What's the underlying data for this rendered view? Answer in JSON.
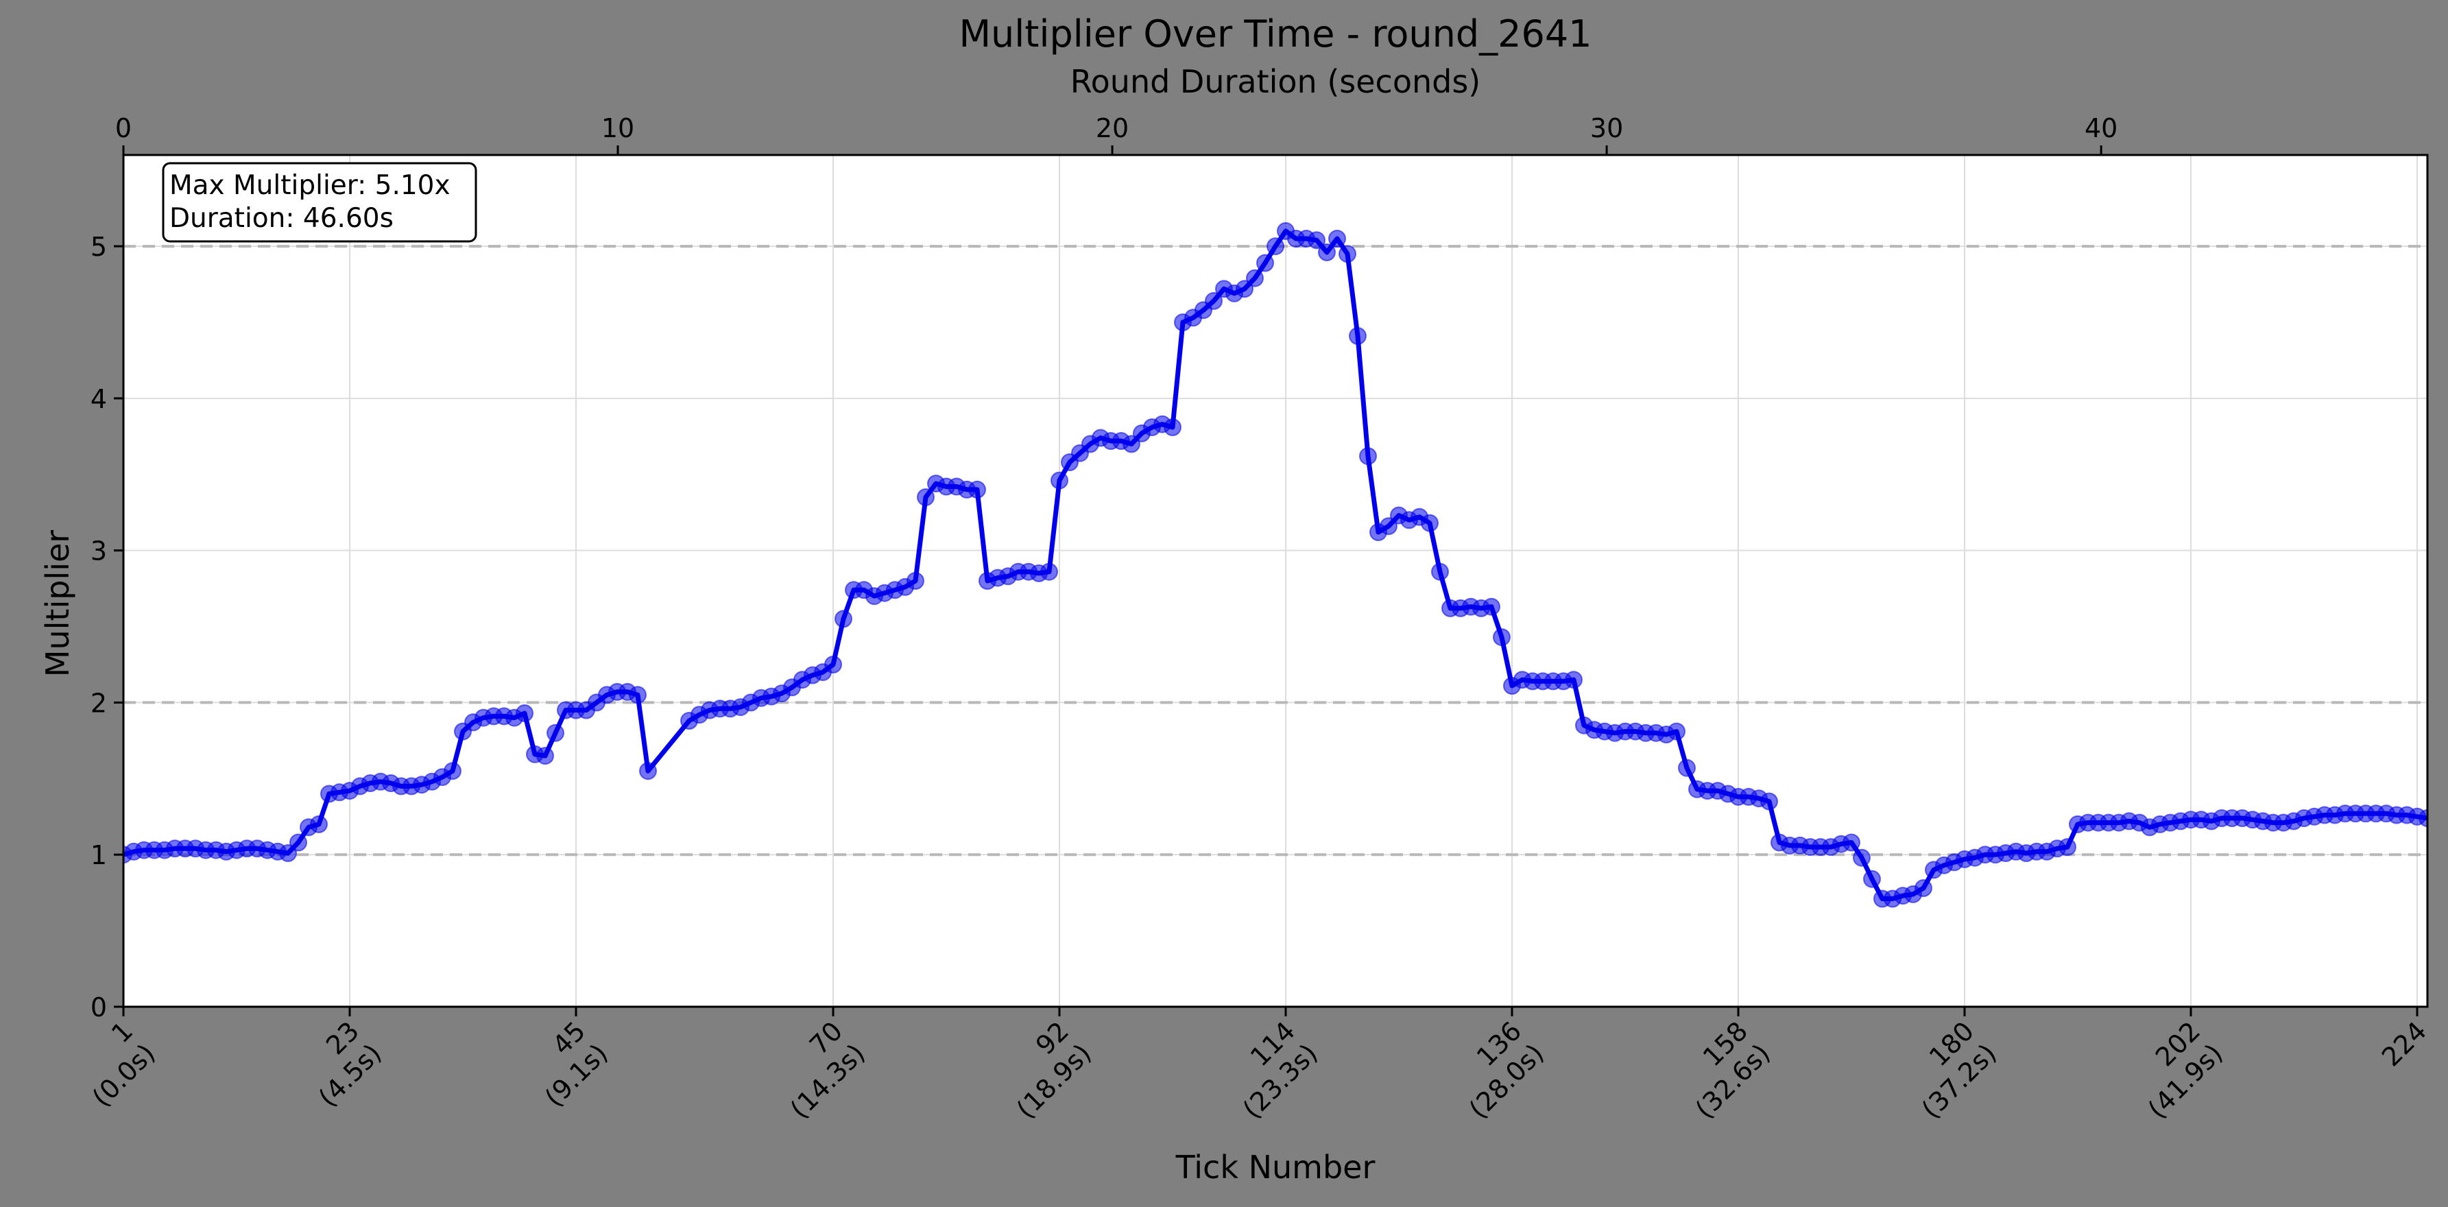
{
  "chart_data": {
    "type": "line",
    "title": "Multiplier Over Time - round_2641",
    "xlabel": "Tick Number",
    "ylabel": "Multiplier",
    "x2label": "Round Duration (seconds)",
    "xlim": [
      1,
      225
    ],
    "ylim": [
      0,
      5.6
    ],
    "x2lim": [
      0,
      46.6
    ],
    "yticks": [
      0,
      1,
      2,
      3,
      4,
      5
    ],
    "x2ticks": [
      0,
      10,
      20,
      30,
      40
    ],
    "xticks": [
      {
        "tick": 1,
        "line1": "1",
        "line2": "(0.0s)"
      },
      {
        "tick": 23,
        "line1": "23",
        "line2": "(4.5s)"
      },
      {
        "tick": 45,
        "line1": "45",
        "line2": "(9.1s)"
      },
      {
        "tick": 70,
        "line1": "70",
        "line2": "(14.3s)"
      },
      {
        "tick": 92,
        "line1": "92",
        "line2": "(18.9s)"
      },
      {
        "tick": 114,
        "line1": "114",
        "line2": "(23.3s)"
      },
      {
        "tick": 136,
        "line1": "136",
        "line2": "(28.0s)"
      },
      {
        "tick": 158,
        "line1": "158",
        "line2": "(32.6s)"
      },
      {
        "tick": 180,
        "line1": "180",
        "line2": "(37.2s)"
      },
      {
        "tick": 202,
        "line1": "202",
        "line2": "(41.9s)"
      },
      {
        "tick": 224,
        "line1": "224",
        "line2": ""
      }
    ],
    "reference_lines": [
      1,
      2,
      5
    ],
    "grid": true,
    "annotation": [
      "Max Multiplier: 5.10x",
      "Duration: 46.60s"
    ],
    "line_color": "#0000ee",
    "series": [
      {
        "points": [
          [
            1,
            1.0
          ],
          [
            2,
            1.02
          ],
          [
            3,
            1.03
          ],
          [
            4,
            1.03
          ],
          [
            5,
            1.03
          ],
          [
            6,
            1.04
          ],
          [
            7,
            1.04
          ],
          [
            8,
            1.04
          ],
          [
            9,
            1.03
          ],
          [
            10,
            1.03
          ],
          [
            11,
            1.02
          ],
          [
            12,
            1.03
          ],
          [
            13,
            1.04
          ],
          [
            14,
            1.04
          ],
          [
            15,
            1.03
          ],
          [
            16,
            1.02
          ],
          [
            17,
            1.01
          ],
          [
            18,
            1.08
          ],
          [
            19,
            1.18
          ],
          [
            20,
            1.2
          ],
          [
            21,
            1.4
          ],
          [
            22,
            1.41
          ],
          [
            23,
            1.42
          ],
          [
            24,
            1.45
          ],
          [
            25,
            1.47
          ],
          [
            26,
            1.48
          ],
          [
            27,
            1.47
          ],
          [
            28,
            1.45
          ],
          [
            29,
            1.45
          ],
          [
            30,
            1.46
          ],
          [
            31,
            1.48
          ],
          [
            32,
            1.51
          ],
          [
            33,
            1.55
          ],
          [
            34,
            1.81
          ],
          [
            35,
            1.87
          ],
          [
            36,
            1.9
          ],
          [
            37,
            1.91
          ],
          [
            38,
            1.91
          ],
          [
            39,
            1.9
          ],
          [
            40,
            1.93
          ],
          [
            41,
            1.66
          ],
          [
            42,
            1.65
          ],
          [
            43,
            1.8
          ],
          [
            44,
            1.95
          ],
          [
            45,
            1.95
          ],
          [
            46,
            1.95
          ],
          [
            47,
            2.0
          ],
          [
            48,
            2.05
          ],
          [
            49,
            2.07
          ],
          [
            50,
            2.07
          ],
          [
            51,
            2.05
          ],
          [
            52,
            1.55
          ],
          [
            56,
            1.88
          ],
          [
            57,
            1.92
          ],
          [
            58,
            1.95
          ],
          [
            59,
            1.96
          ],
          [
            60,
            1.96
          ],
          [
            61,
            1.97
          ],
          [
            62,
            2.0
          ],
          [
            63,
            2.03
          ],
          [
            64,
            2.04
          ],
          [
            65,
            2.06
          ],
          [
            66,
            2.1
          ],
          [
            67,
            2.15
          ],
          [
            68,
            2.18
          ],
          [
            69,
            2.2
          ],
          [
            70,
            2.25
          ],
          [
            71,
            2.55
          ],
          [
            72,
            2.74
          ],
          [
            73,
            2.74
          ],
          [
            74,
            2.7
          ],
          [
            75,
            2.72
          ],
          [
            76,
            2.74
          ],
          [
            77,
            2.76
          ],
          [
            78,
            2.8
          ],
          [
            79,
            3.35
          ],
          [
            80,
            3.44
          ],
          [
            81,
            3.42
          ],
          [
            82,
            3.42
          ],
          [
            83,
            3.4
          ],
          [
            84,
            3.4
          ],
          [
            85,
            2.8
          ],
          [
            86,
            2.82
          ],
          [
            87,
            2.83
          ],
          [
            88,
            2.86
          ],
          [
            89,
            2.86
          ],
          [
            90,
            2.85
          ],
          [
            91,
            2.86
          ],
          [
            92,
            3.46
          ],
          [
            93,
            3.58
          ],
          [
            94,
            3.64
          ],
          [
            95,
            3.7
          ],
          [
            96,
            3.74
          ],
          [
            97,
            3.72
          ],
          [
            98,
            3.72
          ],
          [
            99,
            3.7
          ],
          [
            100,
            3.77
          ],
          [
            101,
            3.81
          ],
          [
            102,
            3.83
          ],
          [
            103,
            3.81
          ],
          [
            104,
            4.5
          ],
          [
            105,
            4.53
          ],
          [
            106,
            4.58
          ],
          [
            107,
            4.64
          ],
          [
            108,
            4.72
          ],
          [
            109,
            4.69
          ],
          [
            110,
            4.72
          ],
          [
            111,
            4.79
          ],
          [
            112,
            4.89
          ],
          [
            113,
            5.0
          ],
          [
            114,
            5.1
          ],
          [
            115,
            5.05
          ],
          [
            116,
            5.05
          ],
          [
            117,
            5.04
          ],
          [
            118,
            4.96
          ],
          [
            119,
            5.05
          ],
          [
            120,
            4.95
          ],
          [
            121,
            4.41
          ],
          [
            122,
            3.62
          ],
          [
            123,
            3.12
          ],
          [
            124,
            3.16
          ],
          [
            125,
            3.23
          ],
          [
            126,
            3.2
          ],
          [
            127,
            3.22
          ],
          [
            128,
            3.18
          ],
          [
            129,
            2.86
          ],
          [
            130,
            2.62
          ],
          [
            131,
            2.62
          ],
          [
            132,
            2.63
          ],
          [
            133,
            2.62
          ],
          [
            134,
            2.63
          ],
          [
            135,
            2.43
          ],
          [
            136,
            2.11
          ],
          [
            137,
            2.15
          ],
          [
            138,
            2.14
          ],
          [
            139,
            2.14
          ],
          [
            140,
            2.14
          ],
          [
            141,
            2.14
          ],
          [
            142,
            2.15
          ],
          [
            143,
            1.85
          ],
          [
            144,
            1.82
          ],
          [
            145,
            1.81
          ],
          [
            146,
            1.8
          ],
          [
            147,
            1.81
          ],
          [
            148,
            1.81
          ],
          [
            149,
            1.8
          ],
          [
            150,
            1.8
          ],
          [
            151,
            1.79
          ],
          [
            152,
            1.81
          ],
          [
            153,
            1.57
          ],
          [
            154,
            1.43
          ],
          [
            155,
            1.42
          ],
          [
            156,
            1.42
          ],
          [
            157,
            1.4
          ],
          [
            158,
            1.38
          ],
          [
            159,
            1.38
          ],
          [
            160,
            1.37
          ],
          [
            161,
            1.35
          ],
          [
            162,
            1.08
          ],
          [
            163,
            1.06
          ],
          [
            164,
            1.06
          ],
          [
            165,
            1.05
          ],
          [
            166,
            1.05
          ],
          [
            167,
            1.05
          ],
          [
            168,
            1.07
          ],
          [
            169,
            1.08
          ],
          [
            170,
            0.98
          ],
          [
            171,
            0.84
          ],
          [
            172,
            0.71
          ],
          [
            173,
            0.71
          ],
          [
            174,
            0.73
          ],
          [
            175,
            0.74
          ],
          [
            176,
            0.78
          ],
          [
            177,
            0.9
          ],
          [
            178,
            0.93
          ],
          [
            179,
            0.95
          ],
          [
            180,
            0.97
          ],
          [
            181,
            0.98
          ],
          [
            182,
            1.0
          ],
          [
            183,
            1.0
          ],
          [
            184,
            1.01
          ],
          [
            185,
            1.02
          ],
          [
            186,
            1.01
          ],
          [
            187,
            1.02
          ],
          [
            188,
            1.02
          ],
          [
            189,
            1.04
          ],
          [
            190,
            1.05
          ],
          [
            191,
            1.2
          ],
          [
            192,
            1.21
          ],
          [
            193,
            1.21
          ],
          [
            194,
            1.21
          ],
          [
            195,
            1.21
          ],
          [
            196,
            1.22
          ],
          [
            197,
            1.21
          ],
          [
            198,
            1.18
          ],
          [
            199,
            1.2
          ],
          [
            200,
            1.21
          ],
          [
            201,
            1.22
          ],
          [
            202,
            1.23
          ],
          [
            203,
            1.23
          ],
          [
            204,
            1.22
          ],
          [
            205,
            1.24
          ],
          [
            206,
            1.24
          ],
          [
            207,
            1.24
          ],
          [
            208,
            1.23
          ],
          [
            209,
            1.22
          ],
          [
            210,
            1.21
          ],
          [
            211,
            1.21
          ],
          [
            212,
            1.22
          ],
          [
            213,
            1.24
          ],
          [
            214,
            1.25
          ],
          [
            215,
            1.26
          ],
          [
            216,
            1.26
          ],
          [
            217,
            1.27
          ],
          [
            218,
            1.27
          ],
          [
            219,
            1.27
          ],
          [
            220,
            1.27
          ],
          [
            221,
            1.27
          ],
          [
            222,
            1.26
          ],
          [
            223,
            1.26
          ],
          [
            224,
            1.25
          ],
          [
            225,
            1.24
          ]
        ]
      }
    ]
  }
}
